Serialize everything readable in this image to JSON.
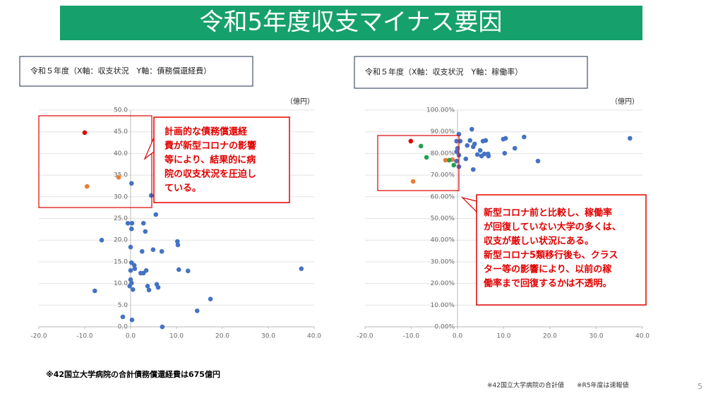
{
  "slide_title": "令和5年度収支マイナス要因",
  "footnote_left": "※42国立大学病院の合計債務償還経費は675億円",
  "footnote_right": "※42国立大学病院の合計値　　※R5年度は速報値",
  "page_number": "5",
  "chart_data": [
    {
      "type": "scatter",
      "title": "令和５年度（X軸：収支状況　Y軸：債務償還経費）",
      "unit_label": "（億円）",
      "annotation": [
        "計画的な債務償還経",
        "費が新型コロナの影響",
        "等により、結果的に病",
        "院の収支状況を圧迫し",
        "ている。"
      ],
      "xlim": [
        -20,
        40
      ],
      "ylim": [
        0,
        50
      ],
      "xticks": [
        {
          "value": -20,
          "label": "-20.0"
        },
        {
          "value": -10,
          "label": "-10.0"
        },
        {
          "value": 0,
          "label": "0.0"
        },
        {
          "value": 10,
          "label": "10.0"
        },
        {
          "value": 20,
          "label": "20.0"
        },
        {
          "value": 30,
          "label": "30.0"
        },
        {
          "value": 40,
          "label": "40.0"
        }
      ],
      "yticks": [
        {
          "value": 0,
          "label": "0.0"
        },
        {
          "value": 5,
          "label": "5.0"
        },
        {
          "value": 10,
          "label": "10.0"
        },
        {
          "value": 15,
          "label": "15.0"
        },
        {
          "value": 20,
          "label": "20.0"
        },
        {
          "value": 25,
          "label": "25.0"
        },
        {
          "value": 30,
          "label": "30.0"
        },
        {
          "value": 35,
          "label": "35.0"
        },
        {
          "value": 40,
          "label": "40.0"
        },
        {
          "value": 45,
          "label": "45.0"
        },
        {
          "value": 50,
          "label": "50.0"
        }
      ],
      "grid": true,
      "series": [
        {
          "color": "#e00000",
          "x": [
            -10
          ],
          "values": [
            44.8
          ]
        },
        {
          "color": "#ed7d31",
          "x": [
            -9.5,
            -2.6
          ],
          "values": [
            32.4,
            34.5
          ]
        },
        {
          "color": "#4472c4",
          "x": [
            0.2,
            4.5,
            5.5,
            -0.6,
            0.3,
            0.2,
            2.8,
            3.2,
            -6.3,
            0,
            10.2,
            10.3,
            2.5,
            4.9,
            6.8,
            0.8,
            0.2,
            0,
            0.9,
            2.2,
            2.8,
            3.4,
            10.5,
            12.5,
            37.2,
            0,
            0.2,
            -0.2,
            0.5,
            3.7,
            5.7,
            6,
            4,
            -7.8,
            17.4,
            14.5,
            -1.7,
            0.3,
            6.9
          ],
          "values": [
            33.1,
            30.3,
            25.9,
            23.9,
            23.9,
            22.6,
            23.9,
            22,
            20,
            18.4,
            19.7,
            18.9,
            17.4,
            17.8,
            17.4,
            14.2,
            14.8,
            13,
            13.4,
            12.4,
            12.4,
            13,
            13.2,
            12.9,
            13.4,
            10.9,
            10.1,
            9.4,
            8.6,
            9.4,
            9.8,
            9.1,
            8.5,
            8.3,
            6.4,
            3.7,
            2.3,
            1.6,
            0
          ]
        }
      ]
    },
    {
      "type": "scatter",
      "title": "令和５年度（X軸：収支状況　Y軸：稼働率）",
      "unit_label": "（億円）",
      "annotation": [
        "新型コロナ前と比較し、稼働率",
        "が回復していない大学の多くは、",
        "収支が厳しい状況にある。",
        "新型コロナ5類移行後も、クラス",
        "ター等の影響により、以前の稼",
        "働率まで回復するかは不透明。"
      ],
      "xlim": [
        -20,
        40
      ],
      "ylim": [
        0,
        100
      ],
      "xticks": [
        {
          "value": -20,
          "label": "-20.0"
        },
        {
          "value": -10,
          "label": "-10.0"
        },
        {
          "value": 0,
          "label": "0.0"
        },
        {
          "value": 10,
          "label": "10.0"
        },
        {
          "value": 20,
          "label": "20.0"
        },
        {
          "value": 30,
          "label": "30.0"
        },
        {
          "value": 40,
          "label": "40.0"
        }
      ],
      "yticks": [
        {
          "value": 0,
          "label": "0.00%"
        },
        {
          "value": 10,
          "label": "10.00%"
        },
        {
          "value": 20,
          "label": "20.00%"
        },
        {
          "value": 30,
          "label": "30.00%"
        },
        {
          "value": 40,
          "label": "40.00%"
        },
        {
          "value": 50,
          "label": "50.00%"
        },
        {
          "value": 60,
          "label": "60.00%"
        },
        {
          "value": 70,
          "label": "70.00%"
        },
        {
          "value": 80,
          "label": "80.00%"
        },
        {
          "value": 90,
          "label": "90.00%"
        },
        {
          "value": 100,
          "label": "100.00%"
        }
      ],
      "grid": true,
      "series": [
        {
          "color": "#e00000",
          "x": [
            -10.1
          ],
          "values": [
            85.7
          ]
        },
        {
          "color": "#ed7d31",
          "x": [
            -9.6,
            -2.6,
            -1.1
          ],
          "values": [
            67.1,
            76.9,
            77.2
          ]
        },
        {
          "color": "#22a050",
          "x": [
            -7.9,
            -6.7,
            -1.8,
            -0.8
          ],
          "values": [
            83.4,
            78.2,
            76.9,
            74.6
          ]
        },
        {
          "color": "#4472c4",
          "x": [
            0.3,
            -0.2,
            0.6,
            0,
            -0.2,
            0.3,
            -0.2,
            0.3,
            3.1,
            2.7,
            2.1,
            3.4,
            3.7,
            4.3,
            4.9,
            5.5,
            6.1,
            5.2,
            5.8,
            6.6,
            6.7,
            1.8,
            3.4,
            9.9,
            10.4,
            10.2,
            12.4,
            14.4,
            17.4,
            37.3
          ],
          "values": [
            88.9,
            85.7,
            85.7,
            82.4,
            80.8,
            79.2,
            76.5,
            73.9,
            91.2,
            86,
            83.7,
            83.1,
            84.4,
            79.5,
            81.4,
            85.7,
            86,
            78.8,
            79.8,
            79.8,
            78.8,
            77.5,
            72.6,
            86.6,
            87,
            80.1,
            82.4,
            87.6,
            76.5,
            87
          ]
        }
      ]
    }
  ]
}
